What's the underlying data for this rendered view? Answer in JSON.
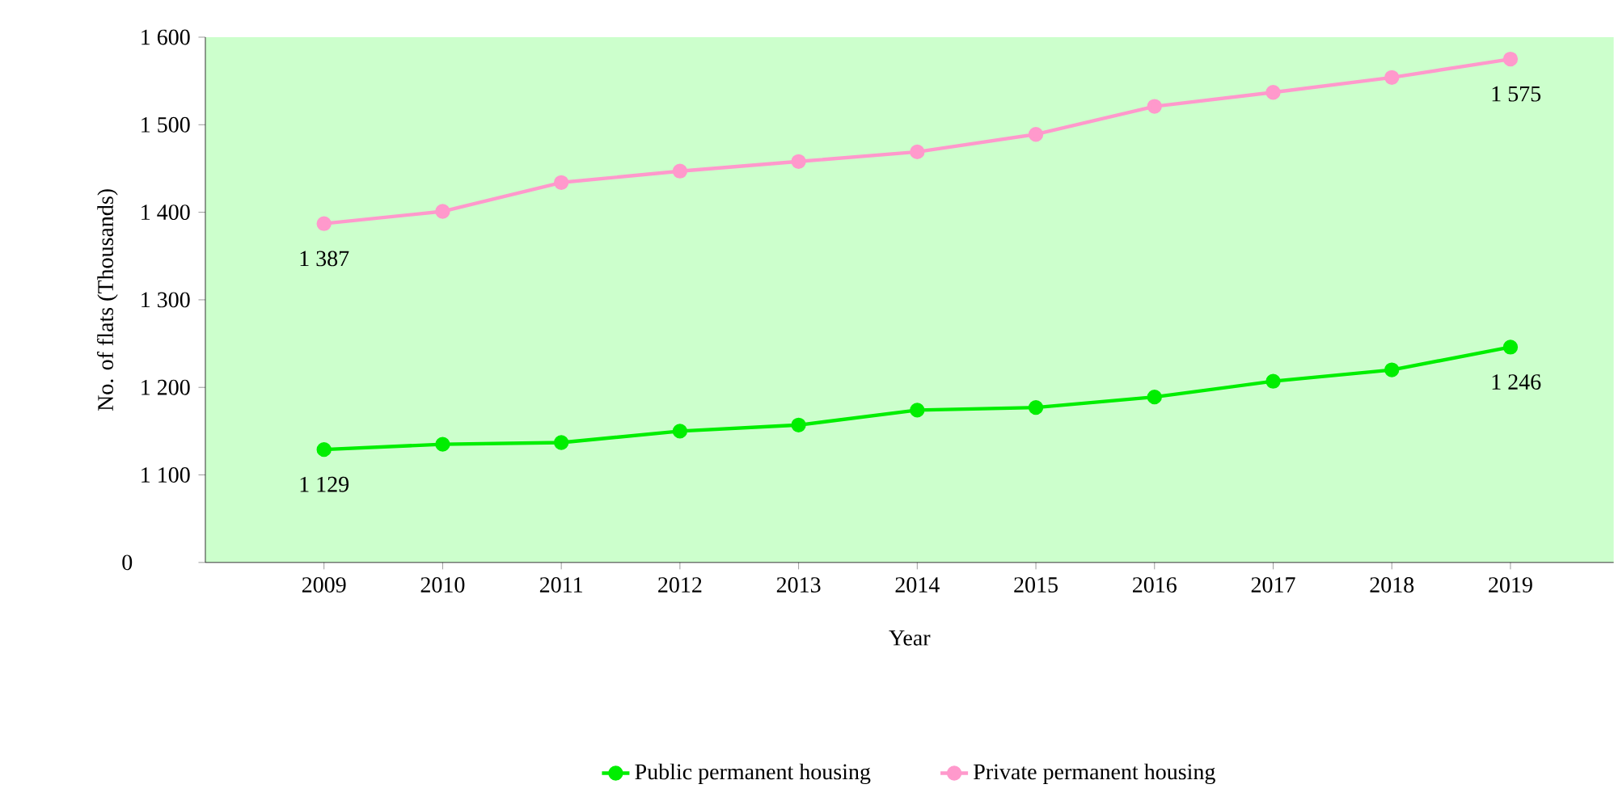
{
  "chart_data": {
    "type": "line",
    "xlabel": "Year",
    "ylabel": "No. of flats (Thousands)",
    "categories": [
      "2009",
      "2010",
      "2011",
      "2012",
      "2013",
      "2014",
      "2015",
      "2016",
      "2017",
      "2018",
      "2019"
    ],
    "ylim": [
      1000,
      1600
    ],
    "annotations": [
      "0"
    ],
    "yticks": [
      {
        "value": 1000,
        "label": null
      },
      {
        "value": 1100,
        "label": "1 100"
      },
      {
        "value": 1200,
        "label": "1 200"
      },
      {
        "value": 1300,
        "label": "1 300"
      },
      {
        "value": 1400,
        "label": "1 400"
      },
      {
        "value": 1500,
        "label": "1 500"
      },
      {
        "value": 1600,
        "label": "1 600"
      }
    ],
    "series": [
      {
        "name": "Public permanent housing",
        "color": "#00ee00",
        "values": [
          1129,
          1135,
          1137,
          1150,
          1157,
          1174,
          1177,
          1189,
          1207,
          1220,
          1246
        ],
        "value_labels": [
          "1 129",
          null,
          null,
          null,
          null,
          null,
          null,
          null,
          null,
          null,
          "1 246"
        ]
      },
      {
        "name": "Private permanent housing",
        "color": "#ff99cc",
        "values": [
          1387,
          1401,
          1434,
          1447,
          1458,
          1469,
          1489,
          1521,
          1537,
          1554,
          1575
        ],
        "value_labels": [
          "1 387",
          null,
          null,
          null,
          null,
          null,
          null,
          null,
          null,
          null,
          "1 575"
        ]
      }
    ],
    "marker": "circle",
    "line_style": "solid",
    "legend": "bottom",
    "grid": false
  }
}
